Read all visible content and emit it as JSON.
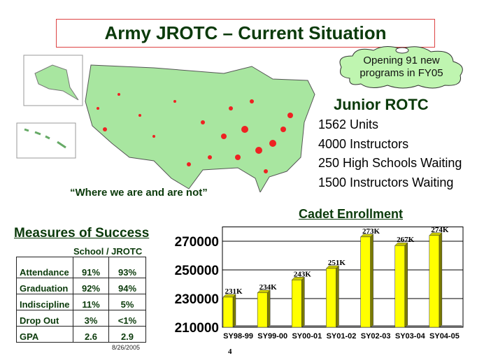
{
  "title": "Army JROTC – Current Situation",
  "callout": {
    "line1": "Opening 91 new",
    "line2": "programs in FY05"
  },
  "junior_rotc": {
    "heading": "Junior ROTC",
    "lines": [
      "1562 Units",
      "4000 Instructors",
      "250 High Schools Waiting",
      "1500 Instructors Waiting"
    ]
  },
  "map_caption": "“Where we are and are not”",
  "measures": {
    "heading": "Measures of Success",
    "columns_label": "School / JROTC",
    "rows": [
      [
        "Attendance",
        "91%",
        "93%"
      ],
      [
        "Graduation",
        "92%",
        "94%"
      ],
      [
        "Indiscipline",
        "11%",
        "5%"
      ],
      [
        "Drop Out",
        "3%",
        "<1%"
      ],
      [
        "GPA",
        "2.6",
        "2.9"
      ]
    ]
  },
  "footer": {
    "date": "8/26/2005",
    "page": "4"
  },
  "colors": {
    "title": "#0b3a0b",
    "bar": "#ffff00",
    "bar_side": "#7a7a00",
    "map": "#a8e6a0"
  },
  "chart_data": {
    "type": "bar",
    "title": "Cadet Enrollment",
    "categories": [
      "SY98-99",
      "SY99-00",
      "SY00-01",
      "SY01-02",
      "SY02-03",
      "SY03-04",
      "SY04-05"
    ],
    "values": [
      231000,
      234000,
      243000,
      251000,
      273000,
      267000,
      274000
    ],
    "data_labels": [
      "231K",
      "234K",
      "243K",
      "251K",
      "273K",
      "267K",
      "274K"
    ],
    "yticks": [
      210000,
      230000,
      250000,
      270000
    ],
    "ylim": [
      210000,
      280000
    ],
    "grid": true,
    "xlabel": "",
    "ylabel": ""
  }
}
